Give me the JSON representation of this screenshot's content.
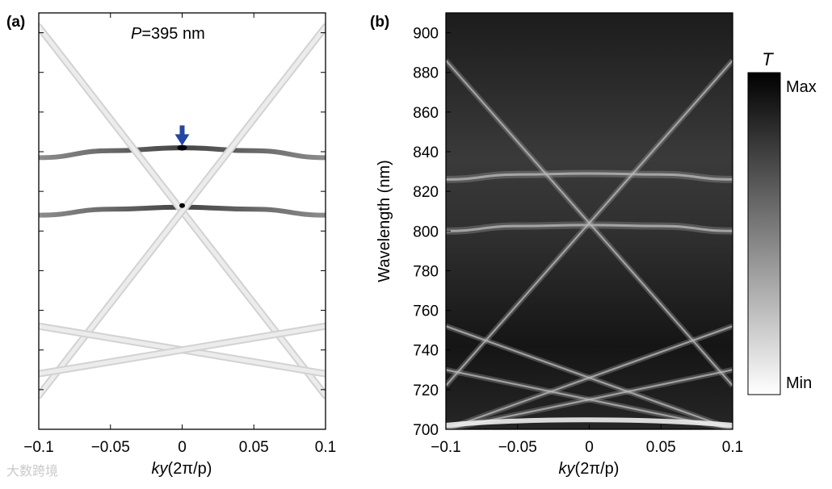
{
  "chart_data": [
    {
      "panel": "(a)",
      "type": "line",
      "annotation": "P=395 nm",
      "annotation_italic": "P",
      "annotation_rest": "=395 nm",
      "xlabel_italic": "ky",
      "xlabel_rest": "(2π/p)",
      "xlim": [
        -0.1,
        0.1
      ],
      "ylim": [
        700,
        910
      ],
      "x_ticks": [
        "−0.1",
        "−0.05",
        "0",
        "0.05",
        "0.1"
      ],
      "x_tick_values": [
        -0.1,
        -0.05,
        0,
        0.05,
        0.1
      ],
      "series": [
        {
          "name": "upper band",
          "x": [
            -0.1,
            -0.05,
            0,
            0.05,
            0.1
          ],
          "y": [
            837,
            840.5,
            842,
            840.5,
            837
          ]
        },
        {
          "name": "lower band",
          "x": [
            -0.1,
            -0.05,
            0,
            0.05,
            0.1
          ],
          "y": [
            808,
            811,
            812,
            811,
            808
          ]
        },
        {
          "name": "diagonal 1",
          "x": [
            -0.1,
            0.1
          ],
          "y": [
            903,
            717
          ]
        },
        {
          "name": "diagonal 2",
          "x": [
            -0.1,
            0.1
          ],
          "y": [
            717,
            903
          ]
        },
        {
          "name": "diagonal 3",
          "x": [
            -0.1,
            0.1
          ],
          "y": [
            752,
            728
          ]
        },
        {
          "name": "diagonal 4",
          "x": [
            -0.1,
            0.1
          ],
          "y": [
            728,
            752
          ]
        }
      ],
      "marker": {
        "x": 0,
        "y": 850,
        "symbol": "down-arrow",
        "color": "#2346a4"
      }
    },
    {
      "panel": "(b)",
      "type": "heatmap",
      "xlabel_italic": "ky",
      "xlabel_rest": "(2π/p)",
      "ylabel": "Wavelength (nm)",
      "xlim": [
        -0.1,
        0.1
      ],
      "ylim": [
        700,
        910
      ],
      "x_ticks": [
        "−0.1",
        "−0.05",
        "0",
        "0.05",
        "0.1"
      ],
      "x_tick_values": [
        -0.1,
        -0.05,
        0,
        0.05,
        0.1
      ],
      "y_ticks": [
        "700",
        "720",
        "740",
        "760",
        "780",
        "800",
        "820",
        "840",
        "860",
        "880",
        "900"
      ],
      "y_tick_values": [
        700,
        720,
        740,
        760,
        780,
        800,
        820,
        840,
        860,
        880,
        900
      ],
      "features": [
        {
          "name": "upper band",
          "x": [
            -0.1,
            -0.05,
            0,
            0.05,
            0.1
          ],
          "y": [
            826,
            828.5,
            829,
            828.5,
            826
          ]
        },
        {
          "name": "lower band",
          "x": [
            -0.1,
            -0.05,
            0,
            0.05,
            0.1
          ],
          "y": [
            800,
            802.5,
            803,
            802.5,
            800
          ]
        },
        {
          "name": "diagonal 1",
          "x": [
            -0.1,
            0.1
          ],
          "y": [
            886,
            722
          ]
        },
        {
          "name": "diagonal 2",
          "x": [
            -0.1,
            0.1
          ],
          "y": [
            722,
            886
          ]
        },
        {
          "name": "diagonal 3",
          "x": [
            -0.1,
            0.1
          ],
          "y": [
            752,
            700
          ]
        },
        {
          "name": "diagonal 4",
          "x": [
            -0.1,
            0.1
          ],
          "y": [
            700,
            752
          ]
        },
        {
          "name": "diagonal 5",
          "x": [
            -0.1,
            0.1
          ],
          "y": [
            730,
            700
          ]
        },
        {
          "name": "diagonal 6",
          "x": [
            -0.1,
            0.1
          ],
          "y": [
            700,
            730
          ]
        }
      ],
      "colorbar": {
        "title": "T",
        "max_label": "Max",
        "min_label": "Min"
      }
    }
  ],
  "watermark": "大数跨境"
}
